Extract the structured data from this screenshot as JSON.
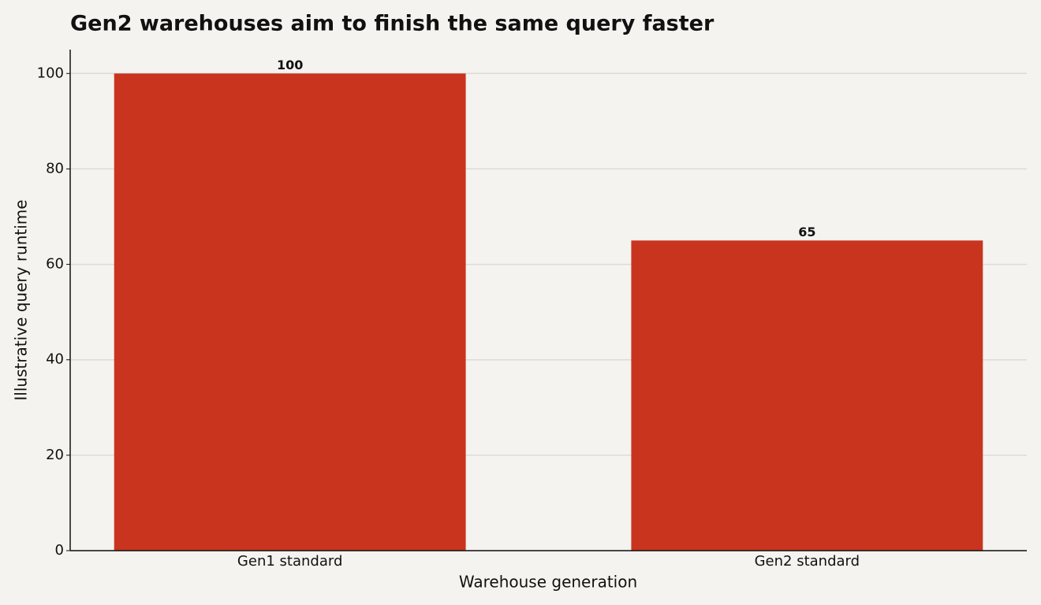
{
  "chart_data": {
    "type": "bar",
    "title": "Gen2 warehouses aim to finish the same query faster",
    "x_label": "Warehouse generation",
    "y_label": "Illustrative query runtime",
    "categories": [
      "Gen1 standard",
      "Gen2 standard"
    ],
    "values": [
      100,
      65
    ],
    "color": "#c9341f",
    "ylim": [
      0,
      105
    ],
    "yticks": [
      0,
      20,
      40,
      60,
      80,
      100
    ],
    "grid": true
  }
}
